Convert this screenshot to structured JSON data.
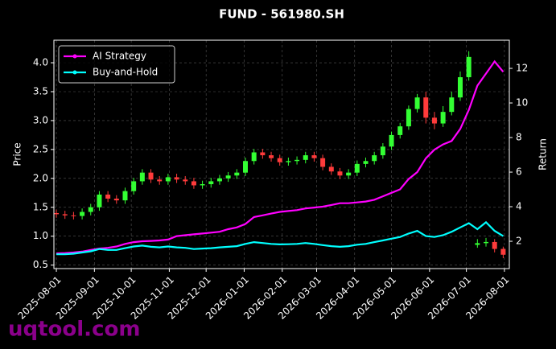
{
  "chart_data": {
    "type": "candlestick",
    "title": "FUND - 561980.SH",
    "ylabel": "Price",
    "y2label": "Return",
    "watermark": "uqtool.com",
    "x": [
      "2025-08-01",
      "2025-08-08",
      "2025-08-15",
      "2025-08-22",
      "2025-08-29",
      "2025-09-05",
      "2025-09-12",
      "2025-09-19",
      "2025-09-26",
      "2025-10-03",
      "2025-10-10",
      "2025-10-17",
      "2025-10-24",
      "2025-10-31",
      "2025-11-07",
      "2025-11-14",
      "2025-11-21",
      "2025-11-28",
      "2025-12-05",
      "2025-12-12",
      "2025-12-19",
      "2025-12-26",
      "2026-01-02",
      "2026-01-09",
      "2026-01-16",
      "2026-01-23",
      "2026-01-30",
      "2026-02-06",
      "2026-02-13",
      "2026-02-20",
      "2026-02-27",
      "2026-03-06",
      "2026-03-13",
      "2026-03-20",
      "2026-03-27",
      "2026-04-03",
      "2026-04-10",
      "2026-04-17",
      "2026-04-24",
      "2026-05-01",
      "2026-05-08",
      "2026-05-15",
      "2026-05-22",
      "2026-05-29",
      "2026-06-05",
      "2026-06-12",
      "2026-06-19",
      "2026-06-26",
      "2026-07-03",
      "2026-07-10",
      "2026-07-17",
      "2026-07-24",
      "2026-07-31"
    ],
    "open": [
      1.4,
      1.38,
      1.36,
      1.35,
      1.42,
      1.5,
      1.72,
      1.65,
      1.62,
      1.78,
      1.95,
      2.1,
      1.98,
      1.95,
      2.02,
      1.98,
      1.95,
      1.88,
      1.9,
      1.95,
      2.0,
      2.05,
      2.1,
      2.3,
      2.45,
      2.4,
      2.35,
      2.28,
      2.3,
      2.32,
      2.4,
      2.35,
      2.2,
      2.12,
      2.05,
      2.1,
      2.25,
      2.3,
      2.4,
      2.55,
      2.75,
      2.9,
      3.2,
      3.4,
      3.05,
      2.95,
      3.15,
      3.4,
      3.75,
      0.85,
      0.88,
      0.9,
      0.78
    ],
    "high": [
      1.46,
      1.44,
      1.42,
      1.48,
      1.56,
      1.78,
      1.78,
      1.71,
      1.84,
      2.01,
      2.16,
      2.16,
      2.04,
      2.08,
      2.08,
      2.04,
      2.01,
      1.96,
      2.01,
      2.06,
      2.11,
      2.16,
      2.36,
      2.51,
      2.51,
      2.46,
      2.41,
      2.36,
      2.38,
      2.46,
      2.46,
      2.41,
      2.26,
      2.18,
      2.16,
      2.31,
      2.36,
      2.46,
      2.61,
      2.81,
      2.96,
      3.26,
      3.46,
      3.5,
      3.15,
      3.25,
      3.5,
      3.85,
      4.2,
      0.95,
      0.97,
      0.95,
      0.82
    ],
    "low": [
      1.32,
      1.3,
      1.29,
      1.29,
      1.36,
      1.44,
      1.59,
      1.56,
      1.56,
      1.72,
      1.89,
      1.92,
      1.89,
      1.89,
      1.92,
      1.89,
      1.82,
      1.82,
      1.84,
      1.89,
      1.94,
      1.99,
      2.04,
      2.24,
      2.34,
      2.29,
      2.22,
      2.22,
      2.24,
      2.26,
      2.29,
      2.14,
      2.06,
      1.99,
      1.99,
      2.04,
      2.19,
      2.24,
      2.34,
      2.49,
      2.69,
      2.84,
      3.14,
      2.95,
      2.85,
      2.89,
      3.09,
      3.34,
      3.69,
      0.8,
      0.82,
      0.72,
      0.62
    ],
    "close": [
      1.38,
      1.36,
      1.35,
      1.42,
      1.5,
      1.72,
      1.65,
      1.62,
      1.78,
      1.95,
      2.1,
      1.98,
      1.95,
      2.02,
      1.98,
      1.95,
      1.88,
      1.9,
      1.95,
      2.0,
      2.05,
      2.1,
      2.3,
      2.45,
      2.4,
      2.35,
      2.28,
      2.3,
      2.32,
      2.4,
      2.35,
      2.2,
      2.12,
      2.05,
      2.1,
      2.25,
      2.3,
      2.4,
      2.55,
      2.75,
      2.9,
      3.2,
      3.4,
      3.05,
      2.95,
      3.15,
      3.4,
      3.75,
      4.1,
      0.88,
      0.9,
      0.78,
      0.68
    ],
    "up_color": "#33ff33",
    "down_color": "#ff3b3b",
    "series": [
      {
        "name": "AI Strategy",
        "color": "#ff00ff",
        "axis": "y2",
        "values": [
          1.3,
          1.32,
          1.35,
          1.4,
          1.5,
          1.58,
          1.62,
          1.7,
          1.85,
          1.95,
          2.0,
          2.02,
          2.05,
          2.1,
          2.3,
          2.35,
          2.4,
          2.45,
          2.5,
          2.55,
          2.7,
          2.8,
          3.0,
          3.4,
          3.5,
          3.6,
          3.7,
          3.75,
          3.8,
          3.9,
          3.95,
          4.0,
          4.1,
          4.2,
          4.2,
          4.25,
          4.3,
          4.4,
          4.6,
          4.8,
          5.0,
          5.6,
          6.0,
          6.8,
          7.3,
          7.6,
          7.8,
          8.5,
          9.6,
          11.0,
          11.7,
          12.4,
          11.8
        ]
      },
      {
        "name": "Buy-and-Hold",
        "color": "#00ffff",
        "axis": "y2",
        "values": [
          1.25,
          1.25,
          1.28,
          1.35,
          1.42,
          1.55,
          1.5,
          1.5,
          1.6,
          1.7,
          1.75,
          1.68,
          1.65,
          1.7,
          1.65,
          1.62,
          1.55,
          1.58,
          1.6,
          1.65,
          1.68,
          1.72,
          1.85,
          1.95,
          1.9,
          1.85,
          1.82,
          1.83,
          1.85,
          1.9,
          1.85,
          1.78,
          1.72,
          1.68,
          1.72,
          1.8,
          1.85,
          1.95,
          2.05,
          2.15,
          2.25,
          2.45,
          2.6,
          2.3,
          2.25,
          2.35,
          2.55,
          2.8,
          3.05,
          2.7,
          3.1,
          2.6,
          2.3
        ]
      }
    ],
    "xlim": [
      "2025-07-30",
      "2026-08-05"
    ],
    "xticks": [
      "2025-08-01",
      "2025-09-01",
      "2025-10-01",
      "2025-11-01",
      "2025-12-01",
      "2026-01-01",
      "2026-02-01",
      "2026-03-01",
      "2026-04-01",
      "2026-05-01",
      "2026-06-01",
      "2026-07-01",
      "2026-08-01"
    ],
    "ylim": [
      0.44,
      4.39
    ],
    "yticks": [
      0.5,
      {
        "value": 1,
        "label": "1.0"
      },
      1.5,
      {
        "value": 2,
        "label": "2.0"
      },
      2.5,
      {
        "value": 3,
        "label": "3.0"
      },
      3.5,
      {
        "value": 4,
        "label": "4.0"
      }
    ],
    "y2lim": [
      0.42,
      13.63
    ],
    "y2ticks": [
      2,
      4,
      6,
      8,
      10,
      12
    ],
    "grid": true,
    "legend": "upper left"
  }
}
